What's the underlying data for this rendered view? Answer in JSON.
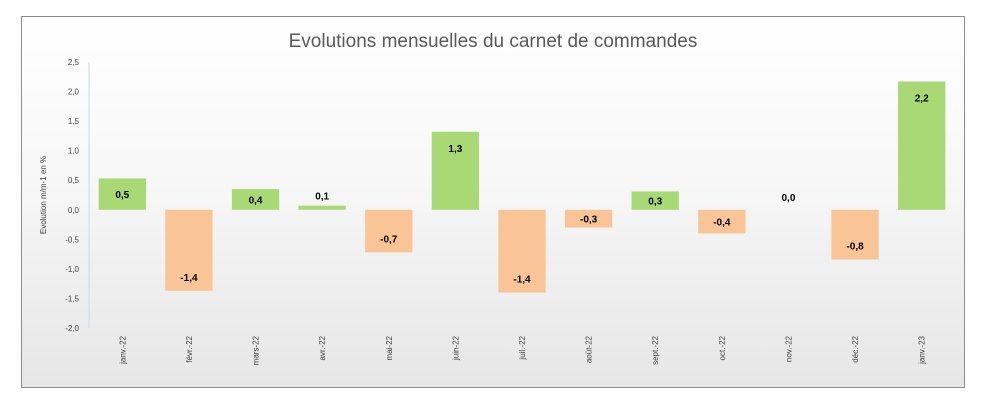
{
  "chart_data": {
    "type": "bar",
    "title": "Evolutions mensuelles du carnet de commandes",
    "xlabel": "",
    "ylabel": "Evolution m/m-1 en %",
    "ylim": [
      -2.0,
      2.5
    ],
    "yticks": [
      "2,5",
      "2,0",
      "1,5",
      "1,0",
      "0,5",
      "0,0",
      "-0,5",
      "-1,0",
      "-1,5",
      "-2,0"
    ],
    "ytick_values": [
      2.5,
      2.0,
      1.5,
      1.0,
      0.5,
      0.0,
      -0.5,
      -1.0,
      -1.5,
      -2.0
    ],
    "categories": [
      "janv.-22",
      "févr.-22",
      "mars-22",
      "avr.-22",
      "mai-22",
      "juin-22",
      "juil.-22",
      "août-22",
      "sept.-22",
      "oct.-22",
      "nov.-22",
      "déc.-22",
      "janv.-23"
    ],
    "values": [
      0.53,
      -1.37,
      0.35,
      0.07,
      -0.72,
      1.32,
      -1.4,
      -0.3,
      0.31,
      -0.4,
      0.0,
      -0.84,
      2.17
    ],
    "data_labels": [
      "0,5",
      "-1,4",
      "0,4",
      "0,1",
      "-0,7",
      "1,3",
      "-1,4",
      "-0,3",
      "0,3",
      "-0,4",
      "0,0",
      "-0,8",
      "2,2"
    ],
    "positive_color": "#a9d975",
    "negative_color": "#f9c596",
    "grid": false,
    "legend": "none"
  }
}
